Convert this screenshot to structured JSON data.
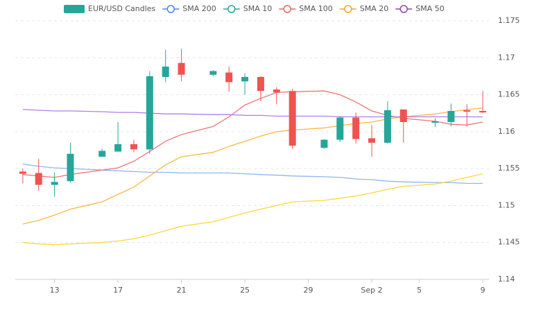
{
  "chart_data": {
    "type": "candlestick",
    "x": [
      "08-11",
      "08-12",
      "08-13",
      "08-14",
      "08-16",
      "08-17",
      "08-18",
      "08-19",
      "08-20",
      "08-21",
      "08-23",
      "08-24",
      "08-25",
      "08-26",
      "08-27",
      "08-28",
      "08-30",
      "08-31",
      "09-01",
      "09-02",
      "09-03",
      "09-04",
      "09-06",
      "09-07",
      "09-08",
      "09-09"
    ],
    "xlim": [
      "08-10",
      "09-10"
    ],
    "xticks": [
      {
        "value": "08-13",
        "label": "13"
      },
      {
        "value": "08-17",
        "label": "17"
      },
      {
        "value": "08-21",
        "label": "21"
      },
      {
        "value": "08-25",
        "label": "25"
      },
      {
        "value": "08-29",
        "label": "29"
      },
      {
        "value": "09-02",
        "label": "Sep 2"
      },
      {
        "value": "09-05",
        "label": "5"
      },
      {
        "value": "09-09",
        "label": "9"
      }
    ],
    "ylim": [
      1.14,
      1.175
    ],
    "yticks": [
      1.14,
      1.145,
      1.15,
      1.155,
      1.16,
      1.165,
      1.17,
      1.175
    ],
    "grid": true,
    "candles": {
      "name": "EUR/USD Candles",
      "up_color": "#26a69a",
      "down_color": "#ef5350",
      "open": [
        1.1546,
        1.1544,
        1.1528,
        1.1533,
        1.1566,
        1.1573,
        1.1583,
        1.1576,
        1.1674,
        1.1693,
        1.1677,
        1.168,
        1.1668,
        1.1674,
        1.1657,
        1.1655,
        1.1578,
        1.1589,
        1.1619,
        1.1591,
        1.1585,
        1.163,
        1.1612,
        1.1613,
        1.1629,
        1.1628
      ],
      "high": [
        1.155,
        1.1563,
        1.1545,
        1.1585,
        1.1577,
        1.1613,
        1.1589,
        1.1682,
        1.1711,
        1.1712,
        1.1683,
        1.1688,
        1.1679,
        1.1675,
        1.166,
        1.1658,
        1.159,
        1.1621,
        1.1626,
        1.1609,
        1.1641,
        1.163,
        1.1618,
        1.1638,
        1.1637,
        1.1655
      ],
      "low": [
        1.153,
        1.152,
        1.1512,
        1.1531,
        1.1566,
        1.1573,
        1.1572,
        1.157,
        1.1667,
        1.1668,
        1.1675,
        1.1654,
        1.165,
        1.1641,
        1.1637,
        1.1577,
        1.1577,
        1.1586,
        1.1584,
        1.1566,
        1.1584,
        1.1585,
        1.1606,
        1.1607,
        1.1607,
        1.1625
      ],
      "close": [
        1.1543,
        1.1528,
        1.1532,
        1.157,
        1.1574,
        1.1583,
        1.1576,
        1.1675,
        1.1688,
        1.1677,
        1.1682,
        1.1667,
        1.1674,
        1.1655,
        1.1653,
        1.1581,
        1.1589,
        1.1619,
        1.159,
        1.1585,
        1.1629,
        1.1613,
        1.1614,
        1.1628,
        1.1627,
        1.1626
      ]
    },
    "series": [
      {
        "name": "SMA 200",
        "color": "#4f7df3",
        "line_color": "#8fb4f5",
        "values": [
          1.1556,
          1.1553,
          1.1551,
          1.155,
          1.1548,
          1.1547,
          1.1546,
          1.1545,
          1.1545,
          1.1544,
          1.1544,
          1.1544,
          1.1543,
          1.1542,
          1.1541,
          1.154,
          1.1539,
          1.1538,
          1.1536,
          1.1535,
          1.1533,
          1.1532,
          1.1531,
          1.1531,
          1.153,
          1.153
        ]
      },
      {
        "name": "SMA 10",
        "color": "#26a69a",
        "line_color": "#fdd835",
        "values": [
          1.145,
          1.1448,
          1.1447,
          1.1448,
          1.145,
          1.1452,
          1.1455,
          1.146,
          1.1466,
          1.1472,
          1.1478,
          1.1484,
          1.149,
          1.1495,
          1.15,
          1.1505,
          1.1507,
          1.151,
          1.1513,
          1.1517,
          1.1522,
          1.1526,
          1.1529,
          1.1533,
          1.1538,
          1.1543
        ]
      },
      {
        "name": "SMA 100",
        "color": "#f06262",
        "line_color": "#f07575",
        "values": [
          1.1542,
          1.154,
          1.1538,
          1.1542,
          1.1548,
          1.1551,
          1.156,
          1.1573,
          1.1587,
          1.1596,
          1.1607,
          1.162,
          1.1636,
          1.1645,
          1.1653,
          1.1654,
          1.1655,
          1.165,
          1.164,
          1.1628,
          1.1622,
          1.1618,
          1.1614,
          1.161,
          1.1609,
          1.1613
        ]
      },
      {
        "name": "SMA 20",
        "color": "#f5a623",
        "line_color": "#f7b844",
        "values": [
          1.1475,
          1.148,
          1.1487,
          1.1495,
          1.1505,
          1.1515,
          1.1525,
          1.154,
          1.1555,
          1.1566,
          1.1572,
          1.158,
          1.1587,
          1.1594,
          1.16,
          1.1602,
          1.1605,
          1.1608,
          1.1611,
          1.1613,
          1.1617,
          1.162,
          1.1624,
          1.1627,
          1.163,
          1.1632
        ]
      },
      {
        "name": "SMA 50",
        "color": "#8e44ad",
        "line_color": "#b07ee8",
        "values": [
          1.163,
          1.1629,
          1.1628,
          1.1628,
          1.1627,
          1.1626,
          1.1626,
          1.1625,
          1.1624,
          1.1624,
          1.1623,
          1.1623,
          1.1622,
          1.1622,
          1.1621,
          1.1621,
          1.1621,
          1.162,
          1.162,
          1.162,
          1.162,
          1.162,
          1.162,
          1.162,
          1.162,
          1.162
        ]
      }
    ]
  }
}
